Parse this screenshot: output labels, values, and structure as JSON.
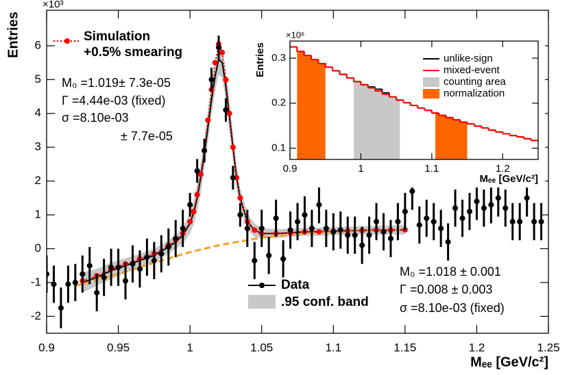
{
  "chart_data": [
    {
      "type": "scatter",
      "ylabel": "Entries",
      "xlabel": "Mₑₑ [GeV/c²]",
      "y_exponent": "×10³",
      "xlim": [
        0.9,
        1.25
      ],
      "ylim": [
        -2.5,
        7.05
      ],
      "xticks": [
        0.9,
        0.95,
        1,
        1.05,
        1.1,
        1.15,
        1.2,
        1.25
      ],
      "yticks": [
        -2,
        -1,
        0,
        1,
        2,
        3,
        4,
        5,
        6
      ],
      "series": [
        {
          "name": "Data",
          "color": "#000000",
          "line_style": "none",
          "marker": true,
          "x": [
            0.9,
            0.905,
            0.91,
            0.915,
            0.92,
            0.925,
            0.93,
            0.935,
            0.94,
            0.945,
            0.95,
            0.955,
            0.96,
            0.965,
            0.97,
            0.975,
            0.98,
            0.985,
            0.99,
            0.995,
            1,
            1.005,
            1.01,
            1.015,
            1.02,
            1.025,
            1.03,
            1.035,
            1.04,
            1.045,
            1.05,
            1.055,
            1.06,
            1.065,
            1.07,
            1.075,
            1.08,
            1.085,
            1.09,
            1.095,
            1.1,
            1.105,
            1.11,
            1.115,
            1.12,
            1.125,
            1.13,
            1.135,
            1.14,
            1.145,
            1.15,
            1.155,
            1.16,
            1.165,
            1.17,
            1.175,
            1.18,
            1.185,
            1.19,
            1.195,
            1.2,
            1.205,
            1.21,
            1.215,
            1.22,
            1.225,
            1.23,
            1.235,
            1.24,
            1.245
          ],
          "values": [
            -0.75,
            -1.05,
            -1.75,
            -1.05,
            -1.0,
            -0.75,
            -0.5,
            -1.3,
            -0.85,
            -0.55,
            -0.55,
            -0.95,
            -0.45,
            -0.6,
            -0.25,
            -0.35,
            -0.15,
            0.05,
            0.3,
            0.6,
            1.3,
            2.3,
            2.9,
            5.0,
            5.95,
            4.1,
            2.1,
            1.0,
            0.6,
            -0.35,
            0.6,
            -0.2,
            0.9,
            -0.3,
            0.55,
            0.8,
            1.0,
            0.6,
            1.3,
            0.6,
            0.5,
            0.55,
            0.4,
            0.4,
            0.1,
            0.4,
            0.8,
            0.5,
            0.3,
            0.8,
            1.1,
            1.7,
            0.7,
            0.9,
            0.8,
            0.6,
            0.2,
            1.2,
            0.9,
            1.1,
            1.4,
            1.2,
            1.3,
            1.5,
            1.2,
            0.8,
            0.8,
            1.5,
            0.8,
            0.8
          ],
          "errors": [
            0.55,
            0.55,
            0.6,
            0.55,
            0.55,
            0.55,
            0.55,
            0.55,
            0.55,
            0.55,
            0.55,
            0.55,
            0.55,
            0.55,
            0.55,
            0.55,
            0.55,
            0.55,
            0.55,
            0.55,
            0.35,
            0.35,
            0.35,
            0.35,
            0.35,
            0.35,
            0.35,
            0.35,
            0.55,
            0.55,
            0.55,
            0.55,
            0.55,
            0.55,
            0.55,
            0.55,
            0.55,
            0.55,
            0.55,
            0.55,
            0.55,
            0.55,
            0.55,
            0.55,
            0.55,
            0.55,
            0.55,
            0.55,
            0.55,
            0.55,
            0.55,
            0.55,
            0.55,
            0.55,
            0.55,
            0.55,
            0.55,
            0.55,
            0.55,
            0.55,
            0.55,
            0.55,
            0.55,
            0.55,
            0.55,
            0.55,
            0.55,
            0.55,
            0.55,
            0.55
          ]
        },
        {
          "name": ".95 conf. band",
          "color": "#000000",
          "band_color": "#c8c8c8",
          "line_style": "solid",
          "marker": false,
          "x": [
            0.925,
            0.935,
            0.945,
            0.955,
            0.965,
            0.975,
            0.985,
            0.99,
            0.995,
            1.0,
            1.0025,
            1.005,
            1.0075,
            1.01,
            1.0125,
            1.015,
            1.0175,
            1.02,
            1.0225,
            1.025,
            1.0275,
            1.03,
            1.0325,
            1.035,
            1.04,
            1.045,
            1.05,
            1.06,
            1.07,
            1.08,
            1.09,
            1.1,
            1.11,
            1.12,
            1.13,
            1.14,
            1.15
          ],
          "values": [
            -1.0,
            -0.85,
            -0.65,
            -0.5,
            -0.35,
            -0.2,
            0.05,
            0.2,
            0.4,
            0.75,
            1.05,
            1.5,
            2.1,
            2.8,
            3.6,
            4.4,
            5.1,
            5.6,
            5.5,
            4.8,
            3.9,
            3.0,
            2.1,
            1.5,
            0.8,
            0.55,
            0.45,
            0.45,
            0.47,
            0.5,
            0.5,
            0.52,
            0.53,
            0.54,
            0.55,
            0.55,
            0.56
          ],
          "lower": [
            -1.3,
            -1.1,
            -0.9,
            -0.72,
            -0.55,
            -0.4,
            -0.15,
            0.0,
            0.15,
            0.45,
            0.7,
            1.1,
            1.65,
            2.35,
            3.15,
            3.95,
            4.65,
            5.15,
            5.05,
            4.35,
            3.45,
            2.6,
            1.75,
            1.2,
            0.55,
            0.35,
            0.3,
            0.32,
            0.35,
            0.38,
            0.38,
            0.4,
            0.41,
            0.42,
            0.42,
            0.42,
            0.42
          ],
          "upper": [
            -0.7,
            -0.6,
            -0.4,
            -0.28,
            -0.15,
            0.0,
            0.25,
            0.4,
            0.65,
            1.05,
            1.4,
            1.9,
            2.55,
            3.25,
            4.05,
            4.85,
            5.55,
            6.05,
            5.95,
            5.25,
            4.35,
            3.4,
            2.45,
            1.8,
            1.05,
            0.75,
            0.6,
            0.58,
            0.59,
            0.62,
            0.62,
            0.64,
            0.65,
            0.66,
            0.68,
            0.68,
            0.7
          ]
        },
        {
          "name": "Simulation",
          "legend_note": "+0.5% smearing",
          "color": "#ff0000",
          "line_style": "dotted",
          "marker": true,
          "x": [
            0.925,
            0.935,
            0.945,
            0.955,
            0.965,
            0.975,
            0.985,
            0.99,
            0.995,
            1.0,
            1.0025,
            1.005,
            1.0075,
            1.01,
            1.0125,
            1.015,
            1.0175,
            1.02,
            1.0225,
            1.025,
            1.0275,
            1.03,
            1.0325,
            1.035,
            1.04,
            1.045,
            1.05,
            1.06,
            1.07,
            1.08,
            1.09,
            1.1,
            1.11,
            1.12,
            1.13,
            1.14,
            1.15
          ],
          "values": [
            -0.95,
            -0.8,
            -0.6,
            -0.45,
            -0.3,
            -0.15,
            0.1,
            0.25,
            0.45,
            0.8,
            1.1,
            1.6,
            2.2,
            2.9,
            3.8,
            4.7,
            5.5,
            6.05,
            5.8,
            5.0,
            4.0,
            3.0,
            2.1,
            1.5,
            0.8,
            0.55,
            0.45,
            0.45,
            0.47,
            0.5,
            0.5,
            0.52,
            0.53,
            0.54,
            0.55,
            0.55,
            0.56
          ]
        },
        {
          "color": "#f5a020",
          "line_style": "dashed",
          "marker": false,
          "x": [
            0.92,
            0.95,
            0.98,
            1.0,
            1.02,
            1.05,
            1.08,
            1.1,
            1.15
          ],
          "values": [
            -1.1,
            -0.75,
            -0.35,
            -0.1,
            0.1,
            0.33,
            0.45,
            0.5,
            0.55
          ]
        }
      ],
      "annotations": {
        "simulation_fit": [
          "M₀ =1.019± 7.3e-05",
          "Γ =4.44e-03 (fixed)",
          "σ =8.10e-03",
          "± 7.7e-05"
        ],
        "data_fit": [
          "M₀ =1.018 ± 0.001",
          "Γ =0.008 ± 0.003",
          "σ =8.10e-03 (fixed)"
        ]
      }
    },
    {
      "type": "histogram",
      "ylabel": "Entries",
      "xlabel": "Mₑₑ [GeV/c²]",
      "y_exponent": "×10⁶",
      "xlim": [
        0.9,
        1.25
      ],
      "ylim": [
        0.075,
        0.338
      ],
      "xticks": [
        0.9,
        1,
        1.1,
        1.2
      ],
      "yticks": [
        0.1,
        0.2,
        0.3
      ],
      "bins": [
        0.9,
        0.91,
        0.92,
        0.93,
        0.94,
        0.95,
        0.96,
        0.97,
        0.98,
        0.99,
        1.0,
        1.01,
        1.02,
        1.03,
        1.04,
        1.05,
        1.06,
        1.07,
        1.08,
        1.09,
        1.1,
        1.11,
        1.12,
        1.13,
        1.14,
        1.15,
        1.16,
        1.17,
        1.18,
        1.19,
        1.2,
        1.21,
        1.22,
        1.23,
        1.24,
        1.25
      ],
      "series": [
        {
          "name": "unlike-sign",
          "color": "#000000",
          "values": [
            0.325,
            0.315,
            0.306,
            0.297,
            0.288,
            0.28,
            0.272,
            0.264,
            0.256,
            0.248,
            0.241,
            0.236,
            0.231,
            0.223,
            0.214,
            0.207,
            0.201,
            0.195,
            0.189,
            0.184,
            0.178,
            0.173,
            0.168,
            0.163,
            0.158,
            0.154,
            0.149,
            0.145,
            0.14,
            0.136,
            0.132,
            0.128,
            0.125,
            0.121,
            0.117
          ]
        },
        {
          "name": "mixed-event",
          "color": "#ff0000",
          "values": [
            0.325,
            0.315,
            0.306,
            0.297,
            0.288,
            0.28,
            0.272,
            0.264,
            0.256,
            0.248,
            0.241,
            0.234,
            0.227,
            0.22,
            0.214,
            0.207,
            0.201,
            0.195,
            0.189,
            0.184,
            0.178,
            0.173,
            0.168,
            0.163,
            0.158,
            0.154,
            0.149,
            0.145,
            0.14,
            0.136,
            0.132,
            0.128,
            0.125,
            0.121,
            0.117
          ]
        }
      ],
      "regions": [
        {
          "name": "counting area",
          "color": "#c8c8c8",
          "spans": [
            [
              0.99,
              1.055
            ]
          ]
        },
        {
          "name": "normalization",
          "color": "#ff6600",
          "spans": [
            [
              0.91,
              0.95
            ],
            [
              1.105,
              1.15
            ]
          ]
        }
      ]
    }
  ]
}
